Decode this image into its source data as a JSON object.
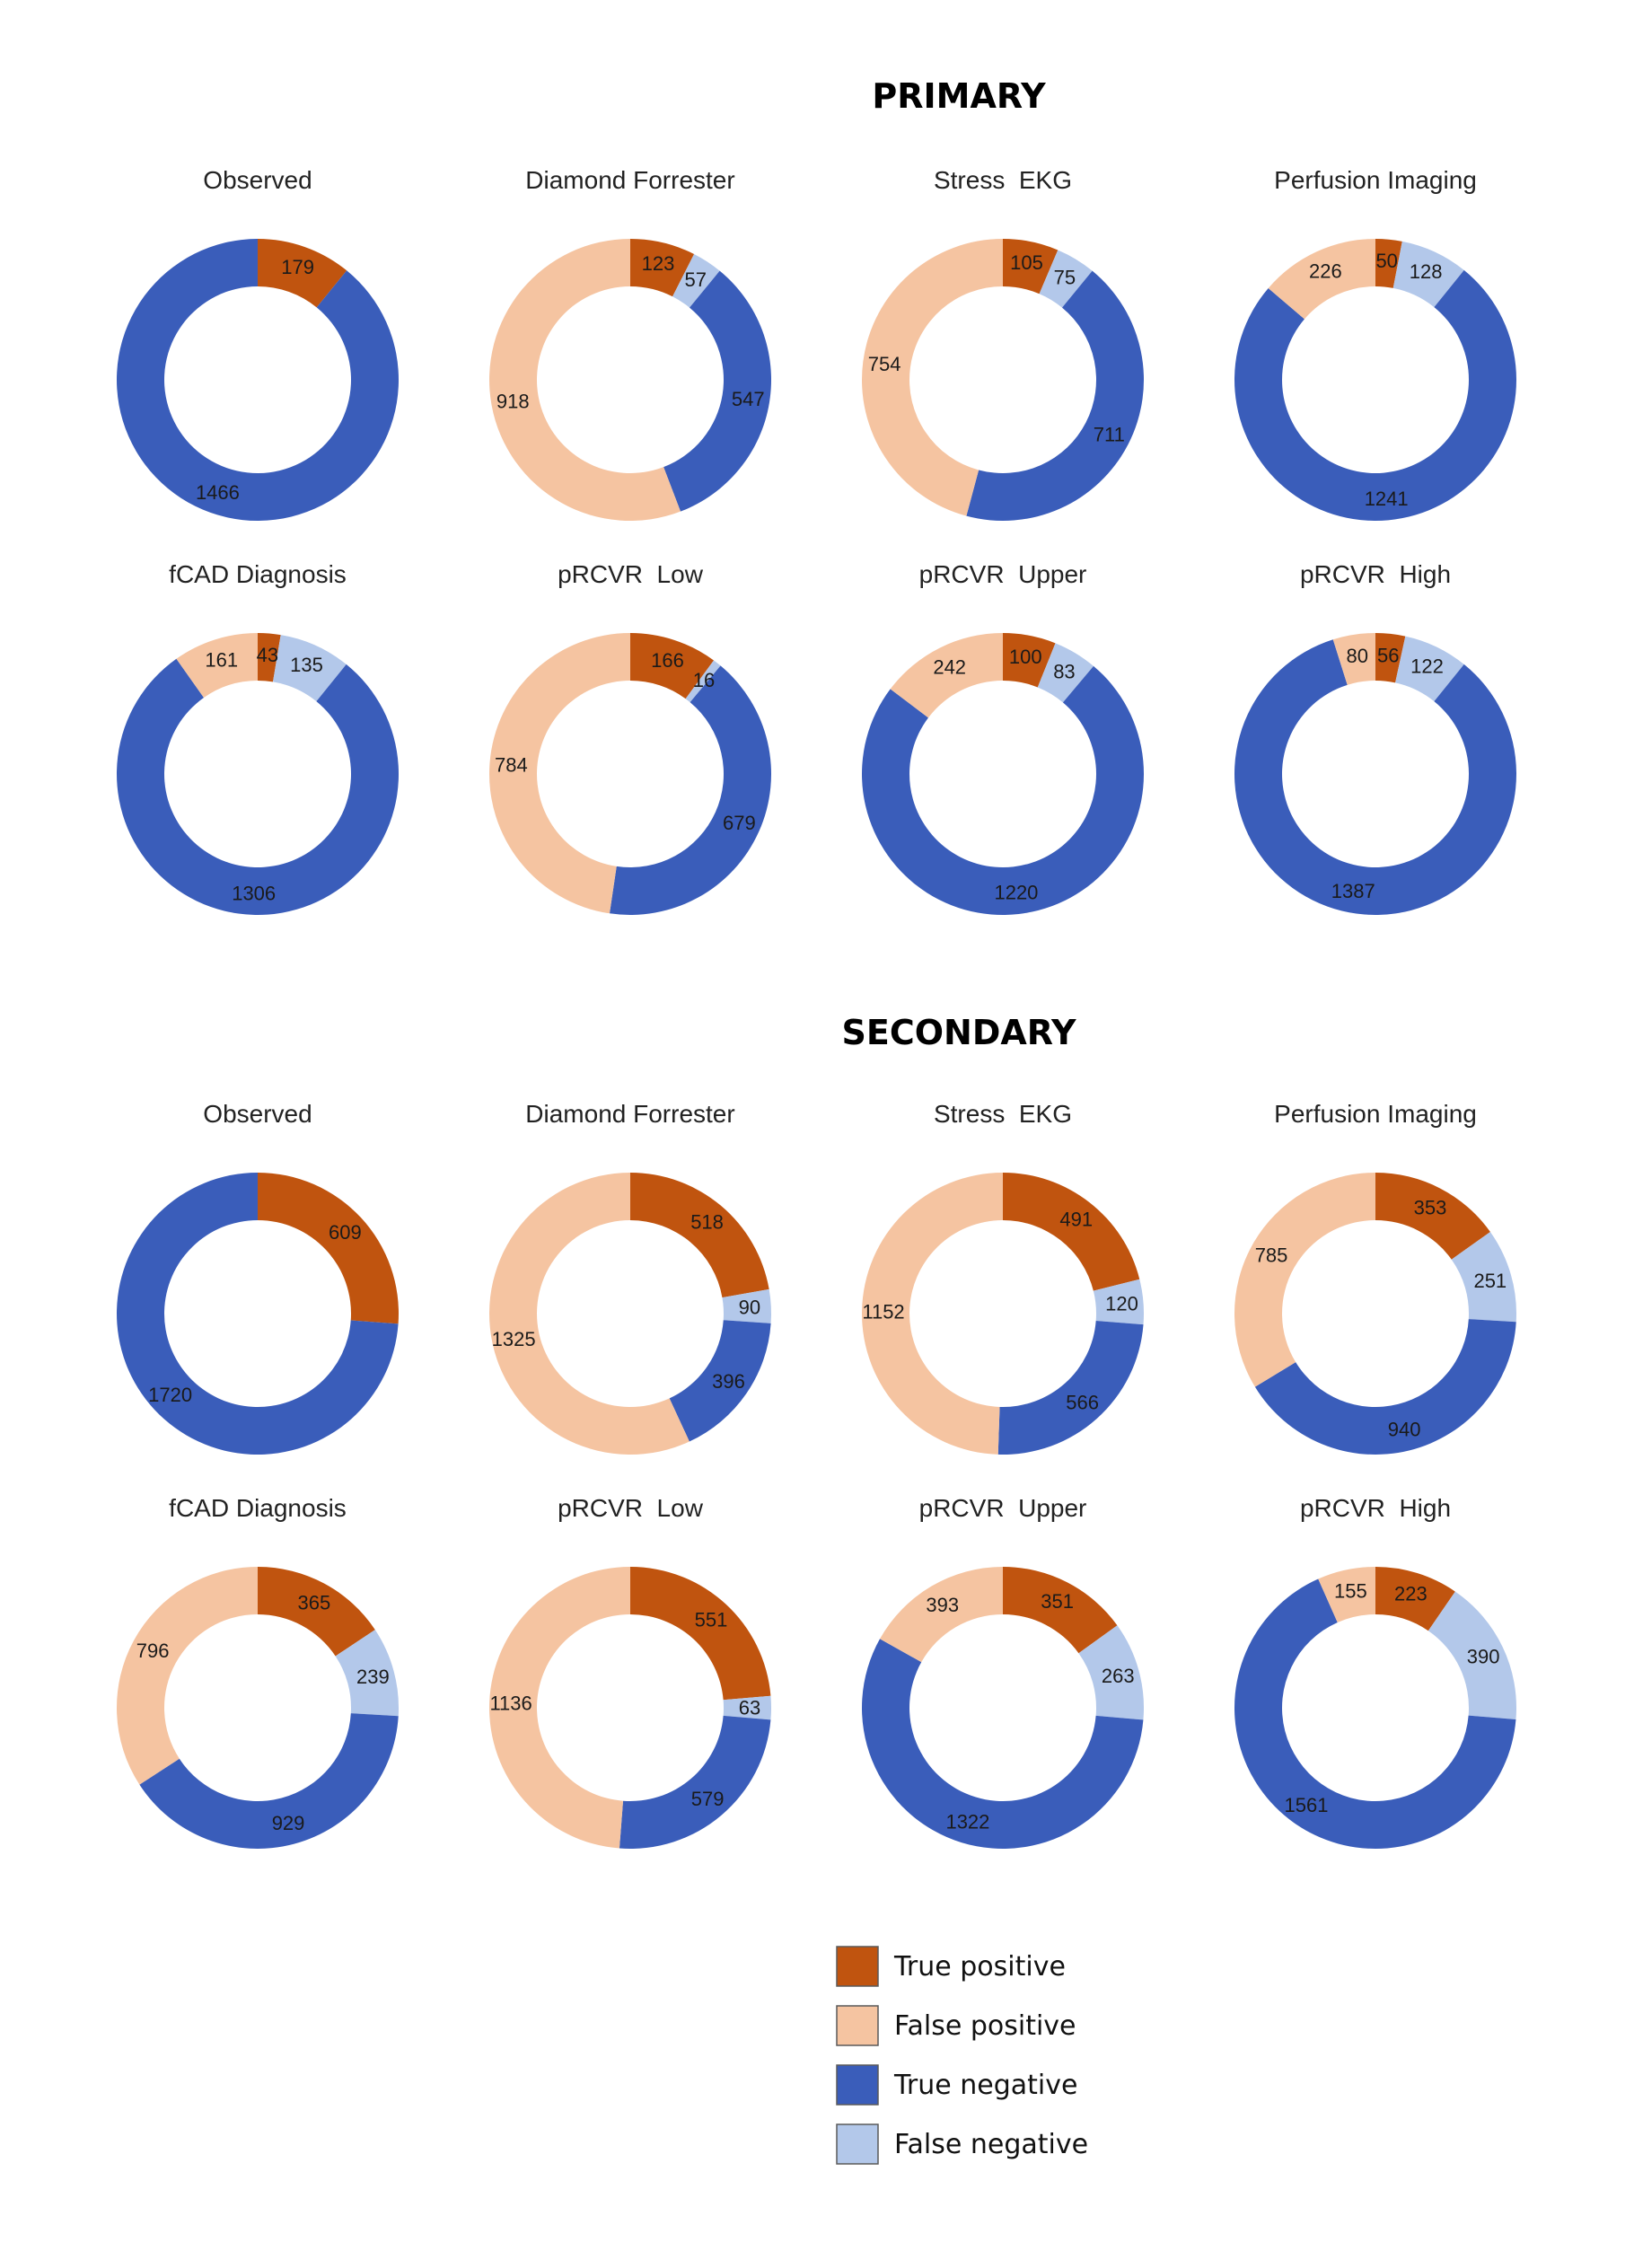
{
  "sections": [
    {
      "title": "PRIMARY"
    },
    {
      "title": "SECONDARY"
    }
  ],
  "colors": {
    "true_positive": "#C0540F",
    "false_positive": "#F5C4A1",
    "true_negative": "#3A5DBA",
    "false_negative": "#B3C8EA"
  },
  "legend": [
    {
      "key": "true_positive",
      "label": "True positive"
    },
    {
      "key": "false_positive",
      "label": "False positive"
    },
    {
      "key": "true_negative",
      "label": "True negative"
    },
    {
      "key": "false_negative",
      "label": "False negative"
    }
  ],
  "chart_data": [
    {
      "type": "pie",
      "section": "PRIMARY",
      "title": "Observed",
      "values": {
        "true_positive": 179,
        "true_negative": 1466
      }
    },
    {
      "type": "pie",
      "section": "PRIMARY",
      "title": "Diamond Forrester",
      "values": {
        "true_positive": 123,
        "false_positive": 918,
        "true_negative": 547,
        "false_negative": 57
      }
    },
    {
      "type": "pie",
      "section": "PRIMARY",
      "title": "Stress  EKG",
      "values": {
        "true_positive": 105,
        "false_positive": 754,
        "true_negative": 711,
        "false_negative": 75
      }
    },
    {
      "type": "pie",
      "section": "PRIMARY",
      "title": "Perfusion Imaging",
      "values": {
        "true_positive": 50,
        "false_positive": 226,
        "true_negative": 1241,
        "false_negative": 128
      }
    },
    {
      "type": "pie",
      "section": "PRIMARY",
      "title": "fCAD Diagnosis",
      "values": {
        "true_positive": 43,
        "false_positive": 161,
        "true_negative": 1306,
        "false_negative": 135
      }
    },
    {
      "type": "pie",
      "section": "PRIMARY",
      "title": "pRCVR  Low",
      "values": {
        "true_positive": 166,
        "false_positive": 784,
        "true_negative": 679,
        "false_negative": 16
      }
    },
    {
      "type": "pie",
      "section": "PRIMARY",
      "title": "pRCVR  Upper",
      "values": {
        "true_positive": 100,
        "false_positive": 242,
        "true_negative": 1220,
        "false_negative": 83
      }
    },
    {
      "type": "pie",
      "section": "PRIMARY",
      "title": "pRCVR  High",
      "values": {
        "true_positive": 56,
        "false_positive": 80,
        "true_negative": 1387,
        "false_negative": 122
      }
    },
    {
      "type": "pie",
      "section": "SECONDARY",
      "title": "Observed",
      "values": {
        "true_positive": 609,
        "true_negative": 1720
      }
    },
    {
      "type": "pie",
      "section": "SECONDARY",
      "title": "Diamond Forrester",
      "values": {
        "true_positive": 518,
        "false_positive": 1325,
        "true_negative": 396,
        "false_negative": 90
      }
    },
    {
      "type": "pie",
      "section": "SECONDARY",
      "title": "Stress  EKG",
      "values": {
        "true_positive": 491,
        "false_positive": 1152,
        "true_negative": 566,
        "false_negative": 120
      }
    },
    {
      "type": "pie",
      "section": "SECONDARY",
      "title": "Perfusion Imaging",
      "values": {
        "true_positive": 353,
        "false_positive": 785,
        "true_negative": 940,
        "false_negative": 251
      }
    },
    {
      "type": "pie",
      "section": "SECONDARY",
      "title": "fCAD Diagnosis",
      "values": {
        "true_positive": 365,
        "false_positive": 796,
        "true_negative": 929,
        "false_negative": 239
      }
    },
    {
      "type": "pie",
      "section": "SECONDARY",
      "title": "pRCVR  Low",
      "values": {
        "true_positive": 551,
        "false_positive": 1136,
        "true_negative": 579,
        "false_negative": 63
      }
    },
    {
      "type": "pie",
      "section": "SECONDARY",
      "title": "pRCVR  Upper",
      "values": {
        "true_positive": 351,
        "false_positive": 393,
        "true_negative": 1322,
        "false_negative": 263
      }
    },
    {
      "type": "pie",
      "section": "SECONDARY",
      "title": "pRCVR  High",
      "values": {
        "true_positive": 223,
        "false_positive": 155,
        "true_negative": 1561,
        "false_negative": 390
      }
    }
  ]
}
